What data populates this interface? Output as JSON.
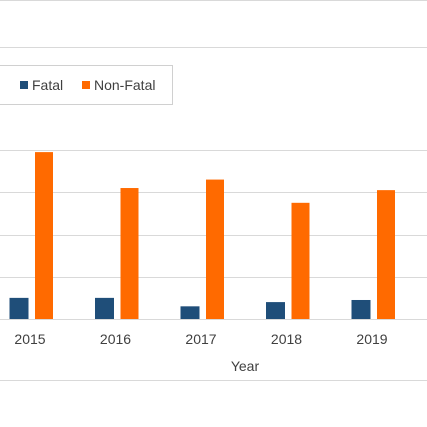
{
  "colors": {
    "fatal": "#1f4e79",
    "non_fatal": "#ff6a00",
    "gridline": "#d9d9d9",
    "text": "#404040"
  },
  "legend": {
    "position": "top-left",
    "fatal_label": "Fatal",
    "non_fatal_label": "Non-Fatal"
  },
  "chart_data": {
    "type": "bar",
    "title": "",
    "xlabel": "Year",
    "ylabel": "",
    "categories": [
      "2015",
      "2016",
      "2017",
      "2018",
      "2019"
    ],
    "series": [
      {
        "name": "Fatal",
        "values": [
          5,
          5,
          3,
          4,
          4.5
        ]
      },
      {
        "name": "Non-Fatal",
        "values": [
          39.5,
          31,
          33,
          27.5,
          30.5
        ]
      }
    ],
    "ylim": [
      0,
      40
    ],
    "grid": true,
    "legend": "top-left"
  }
}
